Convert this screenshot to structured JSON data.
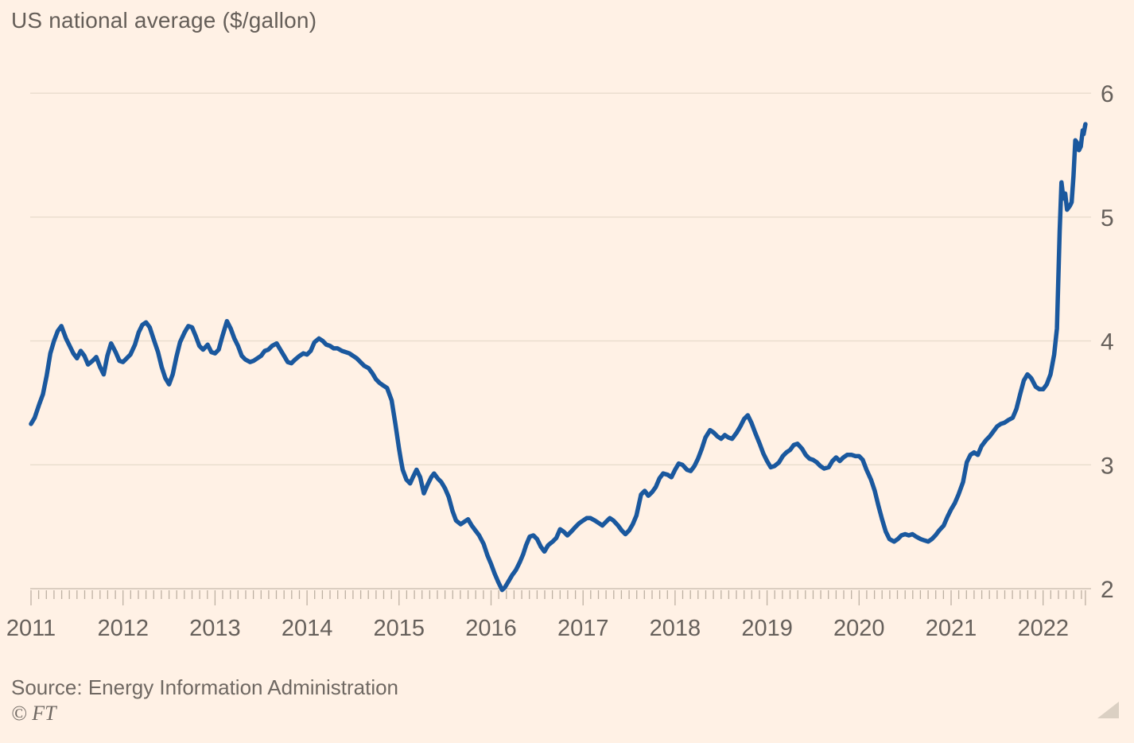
{
  "header": {
    "title": "US national average ($/gallon)"
  },
  "footer": {
    "source": "Source: Energy Information Administration",
    "credit": "© FT"
  },
  "colors": {
    "background": "#fff1e5",
    "line": "#1a589e",
    "grid": "#e9dccd",
    "axis": "#cfc3b5",
    "tick": "#bdb0a2",
    "tick_label": "#66605b",
    "title_text": "#655e58",
    "source_text": "#6f6862",
    "resize_handle": "#dbd0c3"
  },
  "chart_data": {
    "type": "line",
    "title": "US national average ($/gallon)",
    "xlabel": "",
    "ylabel": "$/gallon",
    "xlim": [
      2011,
      2022.46
    ],
    "ylim": [
      2,
      6
    ],
    "yticks": [
      2,
      3,
      4,
      5,
      6
    ],
    "xticks": [
      "2011",
      "2012",
      "2013",
      "2014",
      "2015",
      "2016",
      "2017",
      "2018",
      "2019",
      "2020",
      "2021",
      "2022"
    ],
    "grid": "horizontal gridlines only",
    "legend": "none",
    "x_minor_ticks": "monthly",
    "series": [
      {
        "name": "US national average",
        "color": "#1a589e",
        "points": [
          [
            2011.0,
            3.33
          ],
          [
            2011.04,
            3.38
          ],
          [
            2011.09,
            3.49
          ],
          [
            2011.13,
            3.57
          ],
          [
            2011.17,
            3.72
          ],
          [
            2011.21,
            3.9
          ],
          [
            2011.25,
            4.0
          ],
          [
            2011.29,
            4.08
          ],
          [
            2011.33,
            4.12
          ],
          [
            2011.38,
            4.02
          ],
          [
            2011.42,
            3.96
          ],
          [
            2011.46,
            3.9
          ],
          [
            2011.5,
            3.86
          ],
          [
            2011.54,
            3.92
          ],
          [
            2011.58,
            3.88
          ],
          [
            2011.62,
            3.81
          ],
          [
            2011.67,
            3.84
          ],
          [
            2011.71,
            3.87
          ],
          [
            2011.75,
            3.79
          ],
          [
            2011.79,
            3.73
          ],
          [
            2011.83,
            3.88
          ],
          [
            2011.87,
            3.98
          ],
          [
            2011.92,
            3.91
          ],
          [
            2011.96,
            3.84
          ],
          [
            2012.0,
            3.83
          ],
          [
            2012.04,
            3.86
          ],
          [
            2012.08,
            3.89
          ],
          [
            2012.13,
            3.97
          ],
          [
            2012.17,
            4.07
          ],
          [
            2012.21,
            4.13
          ],
          [
            2012.25,
            4.15
          ],
          [
            2012.29,
            4.11
          ],
          [
            2012.33,
            4.02
          ],
          [
            2012.38,
            3.91
          ],
          [
            2012.42,
            3.79
          ],
          [
            2012.46,
            3.7
          ],
          [
            2012.5,
            3.65
          ],
          [
            2012.54,
            3.73
          ],
          [
            2012.58,
            3.87
          ],
          [
            2012.62,
            3.99
          ],
          [
            2012.67,
            4.07
          ],
          [
            2012.71,
            4.12
          ],
          [
            2012.75,
            4.11
          ],
          [
            2012.79,
            4.04
          ],
          [
            2012.83,
            3.96
          ],
          [
            2012.87,
            3.93
          ],
          [
            2012.92,
            3.97
          ],
          [
            2012.96,
            3.91
          ],
          [
            2013.0,
            3.9
          ],
          [
            2013.04,
            3.93
          ],
          [
            2013.08,
            4.04
          ],
          [
            2013.13,
            4.16
          ],
          [
            2013.17,
            4.1
          ],
          [
            2013.21,
            4.02
          ],
          [
            2013.25,
            3.96
          ],
          [
            2013.29,
            3.88
          ],
          [
            2013.33,
            3.85
          ],
          [
            2013.38,
            3.83
          ],
          [
            2013.42,
            3.84
          ],
          [
            2013.46,
            3.86
          ],
          [
            2013.5,
            3.88
          ],
          [
            2013.54,
            3.92
          ],
          [
            2013.58,
            3.93
          ],
          [
            2013.62,
            3.96
          ],
          [
            2013.67,
            3.98
          ],
          [
            2013.71,
            3.93
          ],
          [
            2013.75,
            3.88
          ],
          [
            2013.79,
            3.83
          ],
          [
            2013.83,
            3.82
          ],
          [
            2013.87,
            3.85
          ],
          [
            2013.92,
            3.88
          ],
          [
            2013.96,
            3.9
          ],
          [
            2014.0,
            3.89
          ],
          [
            2014.04,
            3.92
          ],
          [
            2014.08,
            3.99
          ],
          [
            2014.13,
            4.02
          ],
          [
            2014.17,
            4.0
          ],
          [
            2014.21,
            3.97
          ],
          [
            2014.25,
            3.96
          ],
          [
            2014.29,
            3.94
          ],
          [
            2014.33,
            3.94
          ],
          [
            2014.38,
            3.92
          ],
          [
            2014.42,
            3.91
          ],
          [
            2014.46,
            3.9
          ],
          [
            2014.5,
            3.88
          ],
          [
            2014.54,
            3.86
          ],
          [
            2014.58,
            3.83
          ],
          [
            2014.62,
            3.8
          ],
          [
            2014.67,
            3.78
          ],
          [
            2014.71,
            3.74
          ],
          [
            2014.75,
            3.69
          ],
          [
            2014.79,
            3.66
          ],
          [
            2014.83,
            3.64
          ],
          [
            2014.87,
            3.62
          ],
          [
            2014.92,
            3.52
          ],
          [
            2014.96,
            3.33
          ],
          [
            2015.0,
            3.13
          ],
          [
            2015.02,
            3.04
          ],
          [
            2015.04,
            2.96
          ],
          [
            2015.08,
            2.88
          ],
          [
            2015.12,
            2.85
          ],
          [
            2015.15,
            2.9
          ],
          [
            2015.19,
            2.96
          ],
          [
            2015.23,
            2.9
          ],
          [
            2015.27,
            2.77
          ],
          [
            2015.31,
            2.84
          ],
          [
            2015.35,
            2.9
          ],
          [
            2015.38,
            2.93
          ],
          [
            2015.42,
            2.89
          ],
          [
            2015.46,
            2.86
          ],
          [
            2015.5,
            2.81
          ],
          [
            2015.54,
            2.74
          ],
          [
            2015.58,
            2.63
          ],
          [
            2015.62,
            2.55
          ],
          [
            2015.67,
            2.52
          ],
          [
            2015.71,
            2.54
          ],
          [
            2015.75,
            2.56
          ],
          [
            2015.79,
            2.51
          ],
          [
            2015.83,
            2.47
          ],
          [
            2015.87,
            2.43
          ],
          [
            2015.92,
            2.36
          ],
          [
            2015.96,
            2.27
          ],
          [
            2016.0,
            2.2
          ],
          [
            2016.04,
            2.12
          ],
          [
            2016.08,
            2.05
          ],
          [
            2016.12,
            1.99
          ],
          [
            2016.15,
            2.01
          ],
          [
            2016.19,
            2.06
          ],
          [
            2016.23,
            2.11
          ],
          [
            2016.27,
            2.15
          ],
          [
            2016.31,
            2.21
          ],
          [
            2016.35,
            2.28
          ],
          [
            2016.38,
            2.35
          ],
          [
            2016.42,
            2.42
          ],
          [
            2016.46,
            2.43
          ],
          [
            2016.5,
            2.4
          ],
          [
            2016.54,
            2.34
          ],
          [
            2016.58,
            2.3
          ],
          [
            2016.62,
            2.35
          ],
          [
            2016.67,
            2.38
          ],
          [
            2016.71,
            2.41
          ],
          [
            2016.75,
            2.48
          ],
          [
            2016.79,
            2.46
          ],
          [
            2016.83,
            2.43
          ],
          [
            2016.87,
            2.46
          ],
          [
            2016.92,
            2.5
          ],
          [
            2016.96,
            2.53
          ],
          [
            2017.0,
            2.55
          ],
          [
            2017.04,
            2.57
          ],
          [
            2017.08,
            2.57
          ],
          [
            2017.13,
            2.55
          ],
          [
            2017.17,
            2.53
          ],
          [
            2017.21,
            2.51
          ],
          [
            2017.25,
            2.54
          ],
          [
            2017.29,
            2.57
          ],
          [
            2017.33,
            2.55
          ],
          [
            2017.38,
            2.51
          ],
          [
            2017.42,
            2.47
          ],
          [
            2017.46,
            2.44
          ],
          [
            2017.5,
            2.47
          ],
          [
            2017.54,
            2.52
          ],
          [
            2017.58,
            2.59
          ],
          [
            2017.63,
            2.76
          ],
          [
            2017.67,
            2.79
          ],
          [
            2017.71,
            2.75
          ],
          [
            2017.75,
            2.78
          ],
          [
            2017.79,
            2.82
          ],
          [
            2017.83,
            2.89
          ],
          [
            2017.87,
            2.93
          ],
          [
            2017.92,
            2.92
          ],
          [
            2017.96,
            2.9
          ],
          [
            2018.0,
            2.96
          ],
          [
            2018.04,
            3.01
          ],
          [
            2018.08,
            3.0
          ],
          [
            2018.13,
            2.96
          ],
          [
            2018.17,
            2.95
          ],
          [
            2018.21,
            2.99
          ],
          [
            2018.25,
            3.05
          ],
          [
            2018.29,
            3.13
          ],
          [
            2018.33,
            3.22
          ],
          [
            2018.38,
            3.28
          ],
          [
            2018.42,
            3.26
          ],
          [
            2018.46,
            3.23
          ],
          [
            2018.5,
            3.21
          ],
          [
            2018.54,
            3.24
          ],
          [
            2018.58,
            3.22
          ],
          [
            2018.62,
            3.21
          ],
          [
            2018.67,
            3.26
          ],
          [
            2018.71,
            3.31
          ],
          [
            2018.75,
            3.37
          ],
          [
            2018.79,
            3.4
          ],
          [
            2018.83,
            3.34
          ],
          [
            2018.87,
            3.26
          ],
          [
            2018.92,
            3.17
          ],
          [
            2018.96,
            3.09
          ],
          [
            2019.0,
            3.03
          ],
          [
            2019.04,
            2.98
          ],
          [
            2019.08,
            2.99
          ],
          [
            2019.13,
            3.02
          ],
          [
            2019.17,
            3.07
          ],
          [
            2019.21,
            3.1
          ],
          [
            2019.25,
            3.12
          ],
          [
            2019.29,
            3.16
          ],
          [
            2019.33,
            3.17
          ],
          [
            2019.38,
            3.13
          ],
          [
            2019.42,
            3.08
          ],
          [
            2019.46,
            3.05
          ],
          [
            2019.5,
            3.04
          ],
          [
            2019.54,
            3.02
          ],
          [
            2019.58,
            2.99
          ],
          [
            2019.62,
            2.97
          ],
          [
            2019.67,
            2.98
          ],
          [
            2019.71,
            3.03
          ],
          [
            2019.75,
            3.06
          ],
          [
            2019.79,
            3.03
          ],
          [
            2019.83,
            3.06
          ],
          [
            2019.87,
            3.08
          ],
          [
            2019.92,
            3.08
          ],
          [
            2019.96,
            3.07
          ],
          [
            2020.0,
            3.07
          ],
          [
            2020.04,
            3.04
          ],
          [
            2020.08,
            2.96
          ],
          [
            2020.13,
            2.88
          ],
          [
            2020.17,
            2.79
          ],
          [
            2020.21,
            2.67
          ],
          [
            2020.25,
            2.56
          ],
          [
            2020.29,
            2.46
          ],
          [
            2020.33,
            2.4
          ],
          [
            2020.38,
            2.38
          ],
          [
            2020.42,
            2.4
          ],
          [
            2020.46,
            2.43
          ],
          [
            2020.5,
            2.44
          ],
          [
            2020.54,
            2.43
          ],
          [
            2020.58,
            2.44
          ],
          [
            2020.62,
            2.42
          ],
          [
            2020.67,
            2.4
          ],
          [
            2020.71,
            2.39
          ],
          [
            2020.75,
            2.38
          ],
          [
            2020.79,
            2.4
          ],
          [
            2020.83,
            2.43
          ],
          [
            2020.87,
            2.47
          ],
          [
            2020.92,
            2.51
          ],
          [
            2020.96,
            2.58
          ],
          [
            2021.0,
            2.64
          ],
          [
            2021.04,
            2.69
          ],
          [
            2021.08,
            2.76
          ],
          [
            2021.13,
            2.86
          ],
          [
            2021.17,
            3.02
          ],
          [
            2021.21,
            3.08
          ],
          [
            2021.25,
            3.1
          ],
          [
            2021.29,
            3.08
          ],
          [
            2021.33,
            3.15
          ],
          [
            2021.38,
            3.2
          ],
          [
            2021.42,
            3.23
          ],
          [
            2021.46,
            3.27
          ],
          [
            2021.5,
            3.31
          ],
          [
            2021.54,
            3.33
          ],
          [
            2021.58,
            3.34
          ],
          [
            2021.62,
            3.36
          ],
          [
            2021.67,
            3.38
          ],
          [
            2021.71,
            3.45
          ],
          [
            2021.75,
            3.57
          ],
          [
            2021.79,
            3.68
          ],
          [
            2021.83,
            3.73
          ],
          [
            2021.87,
            3.7
          ],
          [
            2021.92,
            3.63
          ],
          [
            2021.96,
            3.61
          ],
          [
            2022.0,
            3.61
          ],
          [
            2022.04,
            3.65
          ],
          [
            2022.08,
            3.73
          ],
          [
            2022.12,
            3.89
          ],
          [
            2022.15,
            4.1
          ],
          [
            2022.18,
            4.88
          ],
          [
            2022.2,
            5.28
          ],
          [
            2022.22,
            5.15
          ],
          [
            2022.24,
            5.19
          ],
          [
            2022.26,
            5.06
          ],
          [
            2022.29,
            5.09
          ],
          [
            2022.31,
            5.12
          ],
          [
            2022.33,
            5.33
          ],
          [
            2022.35,
            5.62
          ],
          [
            2022.37,
            5.6
          ],
          [
            2022.39,
            5.54
          ],
          [
            2022.41,
            5.57
          ],
          [
            2022.43,
            5.7
          ],
          [
            2022.44,
            5.67
          ],
          [
            2022.46,
            5.75
          ]
        ]
      }
    ]
  }
}
